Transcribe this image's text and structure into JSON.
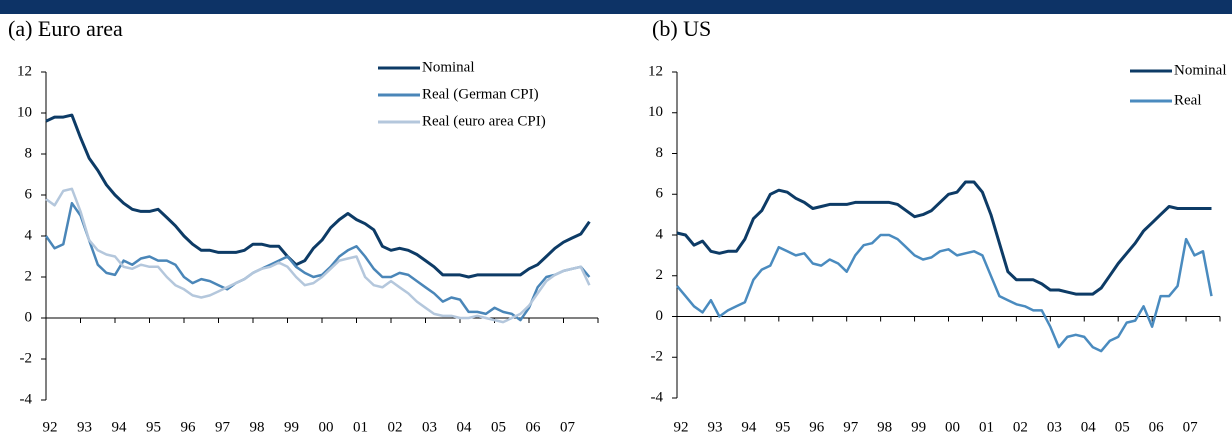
{
  "chart_data": [
    {
      "type": "line",
      "title": "(a) Euro area",
      "x": [
        1992,
        1992.25,
        1992.5,
        1992.75,
        1993,
        1993.25,
        1993.5,
        1993.75,
        1994,
        1994.25,
        1994.5,
        1994.75,
        1995,
        1995.25,
        1995.5,
        1995.75,
        1996,
        1996.25,
        1996.5,
        1996.75,
        1997,
        1997.25,
        1997.5,
        1997.75,
        1998,
        1998.25,
        1998.5,
        1998.75,
        1999,
        1999.25,
        1999.5,
        1999.75,
        2000,
        2000.25,
        2000.5,
        2000.75,
        2001,
        2001.25,
        2001.5,
        2001.75,
        2002,
        2002.25,
        2002.5,
        2002.75,
        2003,
        2003.25,
        2003.5,
        2003.75,
        2004,
        2004.25,
        2004.5,
        2004.75,
        2005,
        2005.25,
        2005.5,
        2005.75,
        2006,
        2006.25,
        2006.5,
        2006.75,
        2007,
        2007.25,
        2007.5,
        2007.75
      ],
      "series": [
        {
          "name": "Nominal",
          "color": "#0d3b66",
          "values": [
            9.6,
            9.8,
            9.8,
            9.9,
            8.8,
            7.8,
            7.2,
            6.5,
            6.0,
            5.6,
            5.3,
            5.2,
            5.2,
            5.3,
            4.9,
            4.5,
            4.0,
            3.6,
            3.3,
            3.3,
            3.2,
            3.2,
            3.2,
            3.3,
            3.6,
            3.6,
            3.5,
            3.5,
            3.0,
            2.6,
            2.8,
            3.4,
            3.8,
            4.4,
            4.8,
            5.1,
            4.8,
            4.6,
            4.3,
            3.5,
            3.3,
            3.4,
            3.3,
            3.1,
            2.8,
            2.5,
            2.1,
            2.1,
            2.1,
            2.0,
            2.1,
            2.1,
            2.1,
            2.1,
            2.1,
            2.1,
            2.4,
            2.6,
            3.0,
            3.4,
            3.7,
            3.9,
            4.1,
            4.7
          ]
        },
        {
          "name": "Real (German CPI)",
          "color": "#4a86b8",
          "values": [
            4.0,
            3.4,
            3.6,
            5.6,
            5.0,
            3.8,
            2.6,
            2.2,
            2.1,
            2.8,
            2.6,
            2.9,
            3.0,
            2.8,
            2.8,
            2.6,
            2.0,
            1.7,
            1.9,
            1.8,
            1.6,
            1.4,
            1.7,
            1.9,
            2.2,
            2.4,
            2.6,
            2.8,
            3.0,
            2.5,
            2.2,
            2.0,
            2.1,
            2.5,
            3.0,
            3.3,
            3.5,
            3.0,
            2.4,
            2.0,
            2.0,
            2.2,
            2.1,
            1.8,
            1.5,
            1.2,
            0.8,
            1.0,
            0.9,
            0.3,
            0.3,
            0.2,
            0.5,
            0.3,
            0.2,
            -0.1,
            0.5,
            1.5,
            2.0,
            2.1,
            2.3,
            2.4,
            2.5,
            2.0
          ]
        },
        {
          "name": "Real (euro area CPI)",
          "color": "#b4c7dc",
          "values": [
            5.8,
            5.5,
            6.2,
            6.3,
            5.2,
            3.8,
            3.3,
            3.1,
            3.0,
            2.5,
            2.4,
            2.6,
            2.5,
            2.5,
            2.0,
            1.6,
            1.4,
            1.1,
            1.0,
            1.1,
            1.3,
            1.5,
            1.7,
            1.9,
            2.2,
            2.4,
            2.5,
            2.7,
            2.5,
            2.0,
            1.6,
            1.7,
            2.0,
            2.4,
            2.8,
            2.9,
            3.0,
            2.0,
            1.6,
            1.5,
            1.8,
            1.5,
            1.2,
            0.8,
            0.5,
            0.2,
            0.1,
            0.1,
            0.0,
            0.0,
            0.1,
            0.0,
            -0.1,
            -0.2,
            0.0,
            0.2,
            0.6,
            1.2,
            1.8,
            2.1,
            2.3,
            2.4,
            2.5,
            1.6
          ]
        }
      ],
      "xlim": [
        1992,
        2008
      ],
      "xticks": [
        {
          "value": 1992,
          "label": "92"
        },
        {
          "value": 1993,
          "label": "93"
        },
        {
          "value": 1994,
          "label": "94"
        },
        {
          "value": 1995,
          "label": "95"
        },
        {
          "value": 1996,
          "label": "96"
        },
        {
          "value": 1997,
          "label": "97"
        },
        {
          "value": 1998,
          "label": "98"
        },
        {
          "value": 1999,
          "label": "99"
        },
        {
          "value": 2000,
          "label": "00"
        },
        {
          "value": 2001,
          "label": "01"
        },
        {
          "value": 2002,
          "label": "02"
        },
        {
          "value": 2003,
          "label": "03"
        },
        {
          "value": 2004,
          "label": "04"
        },
        {
          "value": 2005,
          "label": "05"
        },
        {
          "value": 2006,
          "label": "06"
        },
        {
          "value": 2007,
          "label": "07"
        }
      ],
      "ylim": [
        -4,
        12
      ],
      "yticks": [
        -4,
        -2,
        0,
        2,
        4,
        6,
        8,
        10,
        12
      ],
      "grid": false,
      "legend": "top-right"
    },
    {
      "type": "line",
      "title": "(b) US",
      "x": [
        1992,
        1992.25,
        1992.5,
        1992.75,
        1993,
        1993.25,
        1993.5,
        1993.75,
        1994,
        1994.25,
        1994.5,
        1994.75,
        1995,
        1995.25,
        1995.5,
        1995.75,
        1996,
        1996.25,
        1996.5,
        1996.75,
        1997,
        1997.25,
        1997.5,
        1997.75,
        1998,
        1998.25,
        1998.5,
        1998.75,
        1999,
        1999.25,
        1999.5,
        1999.75,
        2000,
        2000.25,
        2000.5,
        2000.75,
        2001,
        2001.25,
        2001.5,
        2001.75,
        2002,
        2002.25,
        2002.5,
        2002.75,
        2003,
        2003.25,
        2003.5,
        2003.75,
        2004,
        2004.25,
        2004.5,
        2004.75,
        2005,
        2005.25,
        2005.5,
        2005.75,
        2006,
        2006.25,
        2006.5,
        2006.75,
        2007,
        2007.25,
        2007.5,
        2007.75
      ],
      "series": [
        {
          "name": "Nominal",
          "color": "#0d3b66",
          "values": [
            4.1,
            4.0,
            3.5,
            3.7,
            3.2,
            3.1,
            3.2,
            3.2,
            3.8,
            4.8,
            5.2,
            6.0,
            6.2,
            6.1,
            5.8,
            5.6,
            5.3,
            5.4,
            5.5,
            5.5,
            5.5,
            5.6,
            5.6,
            5.6,
            5.6,
            5.6,
            5.5,
            5.2,
            4.9,
            5.0,
            5.2,
            5.6,
            6.0,
            6.1,
            6.6,
            6.6,
            6.1,
            5.0,
            3.6,
            2.2,
            1.8,
            1.8,
            1.8,
            1.6,
            1.3,
            1.3,
            1.2,
            1.1,
            1.1,
            1.1,
            1.4,
            2.0,
            2.6,
            3.1,
            3.6,
            4.2,
            4.6,
            5.0,
            5.4,
            5.3,
            5.3,
            5.3,
            5.3,
            5.3
          ]
        },
        {
          "name": "Real",
          "color": "#4a8bbf",
          "values": [
            1.5,
            1.0,
            0.5,
            0.2,
            0.8,
            0.0,
            0.3,
            0.5,
            0.7,
            1.8,
            2.3,
            2.5,
            3.4,
            3.2,
            3.0,
            3.1,
            2.6,
            2.5,
            2.8,
            2.6,
            2.2,
            3.0,
            3.5,
            3.6,
            4.0,
            4.0,
            3.8,
            3.4,
            3.0,
            2.8,
            2.9,
            3.2,
            3.3,
            3.0,
            3.1,
            3.2,
            3.0,
            2.0,
            1.0,
            0.8,
            0.6,
            0.5,
            0.3,
            0.3,
            -0.5,
            -1.5,
            -1.0,
            -0.9,
            -1.0,
            -1.5,
            -1.7,
            -1.2,
            -1.0,
            -0.3,
            -0.2,
            0.5,
            -0.5,
            1.0,
            1.0,
            1.5,
            3.8,
            3.0,
            3.2,
            1.0
          ]
        }
      ],
      "xlim": [
        1992,
        2008
      ],
      "xticks": [
        {
          "value": 1992,
          "label": "92"
        },
        {
          "value": 1993,
          "label": "93"
        },
        {
          "value": 1994,
          "label": "94"
        },
        {
          "value": 1995,
          "label": "95"
        },
        {
          "value": 1996,
          "label": "96"
        },
        {
          "value": 1997,
          "label": "97"
        },
        {
          "value": 1998,
          "label": "98"
        },
        {
          "value": 1999,
          "label": "99"
        },
        {
          "value": 2000,
          "label": "00"
        },
        {
          "value": 2001,
          "label": "01"
        },
        {
          "value": 2002,
          "label": "02"
        },
        {
          "value": 2003,
          "label": "03"
        },
        {
          "value": 2004,
          "label": "04"
        },
        {
          "value": 2005,
          "label": "05"
        },
        {
          "value": 2006,
          "label": "06"
        },
        {
          "value": 2007,
          "label": "07"
        }
      ],
      "ylim": [
        -4,
        12
      ],
      "yticks": [
        -4,
        -2,
        0,
        2,
        4,
        6,
        8,
        10,
        12
      ],
      "grid": false,
      "legend": "top-right"
    }
  ]
}
